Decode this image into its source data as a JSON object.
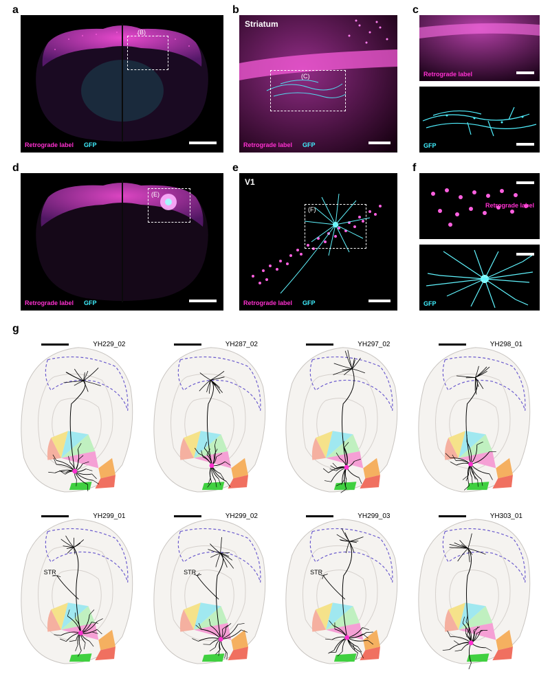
{
  "labels": {
    "a": "a",
    "b": "b",
    "c": "c",
    "d": "d",
    "e": "e",
    "f": "f",
    "g": "g"
  },
  "panel_a": {
    "legend_retro": "Retrograde label",
    "legend_gfp": "GFP",
    "inset": "(B)",
    "colors": {
      "magenta": "#ff30d0",
      "cyan": "#40f0ff",
      "bg": "#000000"
    }
  },
  "panel_b": {
    "title": "Striatum",
    "legend_retro": "Retrograde label",
    "legend_gfp": "GFP",
    "inset": "(C)"
  },
  "panel_c": {
    "top_label": "Retrograde label",
    "bottom_label": "GFP"
  },
  "panel_d": {
    "legend_retro": "Retrograde label",
    "legend_gfp": "GFP",
    "inset": "(E)"
  },
  "panel_e": {
    "title": "V1",
    "legend_retro": "Retrograde label",
    "legend_gfp": "GFP",
    "inset": "(F)"
  },
  "panel_f": {
    "top_label": "Retrograde label",
    "bottom_label": "GFP"
  },
  "panel_g": {
    "bg": "#f5f3f0",
    "outline": "#c8c4c0",
    "cortex_dash": "#6a5acd",
    "regions": {
      "salmon": "#f5b0a0",
      "yellow": "#f5e28a",
      "cyan": "#a0e8f0",
      "mint": "#c0f0c0",
      "pink": "#f5a0d5",
      "orange": "#f5b060",
      "red": "#f07060",
      "green": "#40d040"
    },
    "cells": [
      {
        "id": "YH229_02",
        "str": false
      },
      {
        "id": "YH287_02",
        "str": false
      },
      {
        "id": "YH297_02",
        "str": false
      },
      {
        "id": "YH298_01",
        "str": false
      },
      {
        "id": "YH299_01",
        "str": true
      },
      {
        "id": "YH299_02",
        "str": true
      },
      {
        "id": "YH299_03",
        "str": true
      },
      {
        "id": "YH303_01",
        "str": false
      }
    ],
    "str_text": "STR"
  }
}
